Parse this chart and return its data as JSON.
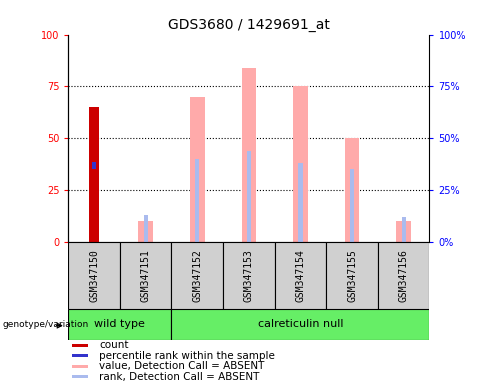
{
  "title": "GDS3680 / 1429691_at",
  "samples": [
    "GSM347150",
    "GSM347151",
    "GSM347152",
    "GSM347153",
    "GSM347154",
    "GSM347155",
    "GSM347156"
  ],
  "wt_count": 2,
  "cr_count": 5,
  "wt_label": "wild type",
  "cr_label": "calreticulin null",
  "count_values": [
    65,
    0,
    0,
    0,
    0,
    0,
    0
  ],
  "percentile_rank_values": [
    37,
    0,
    0,
    0,
    0,
    0,
    0
  ],
  "absent_value_bars": [
    0,
    10,
    70,
    84,
    75,
    50,
    10
  ],
  "absent_rank_bars": [
    0,
    13,
    40,
    44,
    38,
    35,
    12
  ],
  "ylim": [
    0,
    100
  ],
  "yticks": [
    0,
    25,
    50,
    75,
    100
  ],
  "bar_color_count": "#cc0000",
  "bar_color_rank": "#3333cc",
  "bar_color_absent_value": "#ffaaaa",
  "bar_color_absent_rank": "#aabbee",
  "green_color": "#66ee66",
  "gray_color": "#d0d0d0",
  "title_fontsize": 10,
  "tick_fontsize": 7,
  "label_fontsize": 8,
  "legend_fontsize": 7.5
}
